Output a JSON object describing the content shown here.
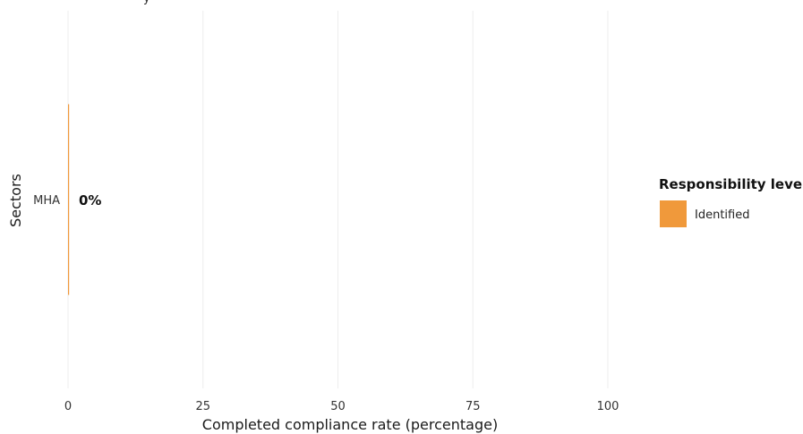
{
  "chart_data": {
    "type": "bar",
    "orientation": "horizontal",
    "title_fragment": "y",
    "xlabel": "Completed compliance rate (percentage)",
    "ylabel": "Sectors",
    "xlim": [
      0,
      100
    ],
    "x_ticks": [
      "0",
      "25",
      "50",
      "75",
      "100"
    ],
    "grid": true,
    "categories": [
      "MHA"
    ],
    "series": [
      {
        "name": "Identified",
        "values": [
          0
        ],
        "color": "#F0993B"
      }
    ],
    "data_labels": [
      "0%"
    ],
    "legend": {
      "title": "Responsibility level",
      "position": "right",
      "items": [
        {
          "label": "Identified",
          "color": "#F0993B"
        }
      ]
    }
  }
}
